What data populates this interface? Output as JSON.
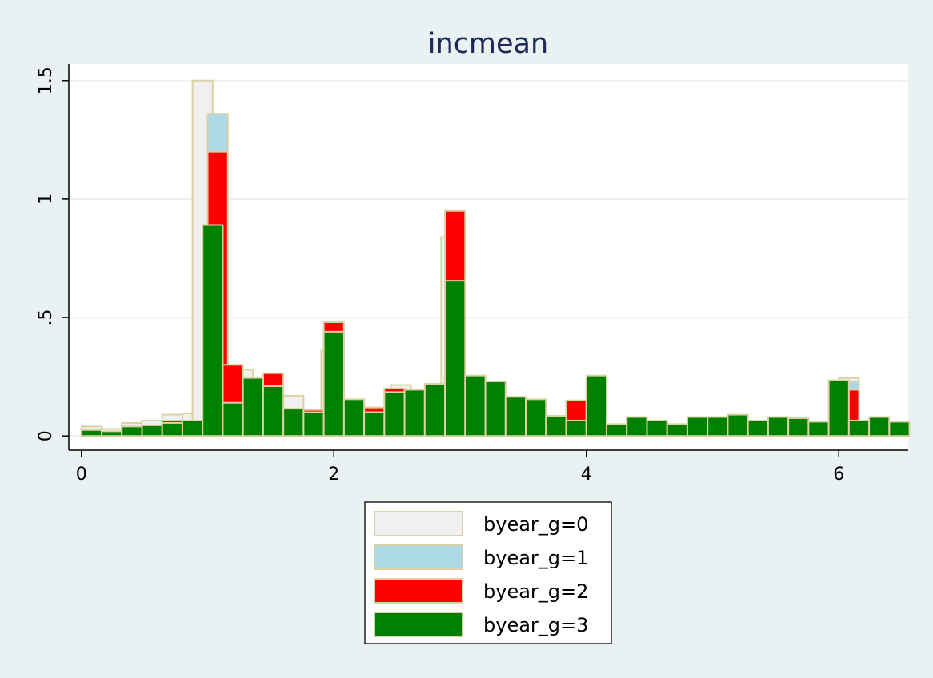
{
  "chart_data": {
    "type": "bar",
    "title": "incmean",
    "xlabel": "",
    "ylabel": "",
    "xlim": [
      -0.1,
      6.55
    ],
    "ylim": [
      -0.06,
      1.57
    ],
    "xticks": [
      0,
      2,
      4,
      6
    ],
    "xtick_labels": [
      "0",
      "2",
      "4",
      "6"
    ],
    "yticks": [
      0,
      0.5,
      1,
      1.5
    ],
    "ytick_labels": [
      "0",
      ".5",
      "1",
      "1.5"
    ],
    "grid": true,
    "legend_position": "bottom",
    "bin_width": 0.16,
    "series": [
      {
        "name": "byear_g=0",
        "color": "#f0f0f0",
        "bins": [
          {
            "x": 0.0,
            "y": 0.04
          },
          {
            "x": 0.16,
            "y": 0.03
          },
          {
            "x": 0.32,
            "y": 0.055
          },
          {
            "x": 0.48,
            "y": 0.065
          },
          {
            "x": 0.64,
            "y": 0.09
          },
          {
            "x": 0.8,
            "y": 0.095
          },
          {
            "x": 0.88,
            "y": 1.5
          },
          {
            "x": 1.2,
            "y": 0.28
          },
          {
            "x": 1.6,
            "y": 0.17
          },
          {
            "x": 1.9,
            "y": 0.36
          },
          {
            "x": 2.2,
            "y": 0.12
          },
          {
            "x": 2.45,
            "y": 0.215
          },
          {
            "x": 2.85,
            "y": 0.84
          },
          {
            "x": 6.0,
            "y": 0.245
          }
        ]
      },
      {
        "name": "byear_g=1",
        "color": "#add8e6",
        "bins": [
          {
            "x": 1.0,
            "y": 1.36
          },
          {
            "x": 6.0,
            "y": 0.23
          }
        ]
      },
      {
        "name": "byear_g=2",
        "color": "#ff0000",
        "bins": [
          {
            "x": 0.64,
            "y": 0.065
          },
          {
            "x": 1.0,
            "y": 1.2
          },
          {
            "x": 1.12,
            "y": 0.3
          },
          {
            "x": 1.44,
            "y": 0.265
          },
          {
            "x": 1.76,
            "y": 0.11
          },
          {
            "x": 1.92,
            "y": 0.48
          },
          {
            "x": 2.24,
            "y": 0.12
          },
          {
            "x": 2.4,
            "y": 0.2
          },
          {
            "x": 2.88,
            "y": 0.95
          },
          {
            "x": 3.84,
            "y": 0.15
          },
          {
            "x": 6.0,
            "y": 0.195
          }
        ]
      },
      {
        "name": "byear_g=3",
        "color": "#008000",
        "bins": [
          {
            "x": 0.0,
            "y": 0.025
          },
          {
            "x": 0.16,
            "y": 0.02
          },
          {
            "x": 0.32,
            "y": 0.04
          },
          {
            "x": 0.48,
            "y": 0.045
          },
          {
            "x": 0.64,
            "y": 0.055
          },
          {
            "x": 0.8,
            "y": 0.065
          },
          {
            "x": 0.96,
            "y": 0.89
          },
          {
            "x": 1.12,
            "y": 0.14
          },
          {
            "x": 1.28,
            "y": 0.245
          },
          {
            "x": 1.44,
            "y": 0.21
          },
          {
            "x": 1.6,
            "y": 0.115
          },
          {
            "x": 1.76,
            "y": 0.1
          },
          {
            "x": 1.92,
            "y": 0.44
          },
          {
            "x": 2.08,
            "y": 0.155
          },
          {
            "x": 2.24,
            "y": 0.1
          },
          {
            "x": 2.4,
            "y": 0.185
          },
          {
            "x": 2.56,
            "y": 0.195
          },
          {
            "x": 2.72,
            "y": 0.22
          },
          {
            "x": 2.88,
            "y": 0.655
          },
          {
            "x": 3.04,
            "y": 0.255
          },
          {
            "x": 3.2,
            "y": 0.23
          },
          {
            "x": 3.36,
            "y": 0.165
          },
          {
            "x": 3.52,
            "y": 0.155
          },
          {
            "x": 3.68,
            "y": 0.085
          },
          {
            "x": 3.84,
            "y": 0.065
          },
          {
            "x": 4.0,
            "y": 0.255
          },
          {
            "x": 4.16,
            "y": 0.05
          },
          {
            "x": 4.32,
            "y": 0.08
          },
          {
            "x": 4.48,
            "y": 0.065
          },
          {
            "x": 4.64,
            "y": 0.05
          },
          {
            "x": 4.8,
            "y": 0.08
          },
          {
            "x": 4.96,
            "y": 0.08
          },
          {
            "x": 5.12,
            "y": 0.09
          },
          {
            "x": 5.28,
            "y": 0.065
          },
          {
            "x": 5.44,
            "y": 0.08
          },
          {
            "x": 5.6,
            "y": 0.075
          },
          {
            "x": 5.76,
            "y": 0.06
          },
          {
            "x": 5.92,
            "y": 0.235
          },
          {
            "x": 6.08,
            "y": 0.065
          },
          {
            "x": 6.24,
            "y": 0.08
          },
          {
            "x": 6.4,
            "y": 0.06
          }
        ]
      }
    ]
  },
  "colors": {
    "background": "#eaf1f3",
    "plot_background": "#ffffff",
    "bar_outline": "#d9d2a3",
    "gridline": "#eaf1f3",
    "title": "#1e2b5a"
  }
}
